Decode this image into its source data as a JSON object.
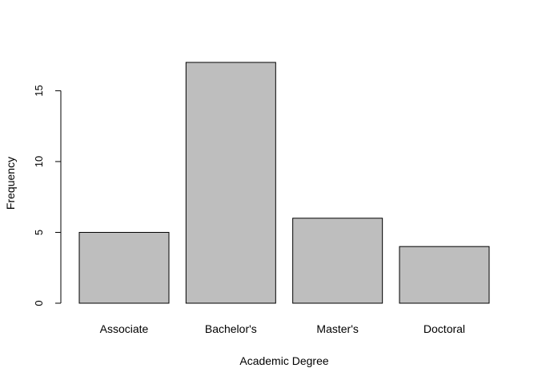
{
  "chart_data": {
    "type": "bar",
    "categories": [
      "Associate",
      "Bachelor's",
      "Master's",
      "Doctoral"
    ],
    "values": [
      5,
      17,
      6,
      4
    ],
    "title": "",
    "xlabel": "Academic Degree",
    "ylabel": "Frequency",
    "ylim": [
      0,
      17
    ],
    "yticks": [
      0,
      5,
      10,
      15
    ],
    "bar_color": "#bebebe",
    "grid": false,
    "legend": "none"
  }
}
